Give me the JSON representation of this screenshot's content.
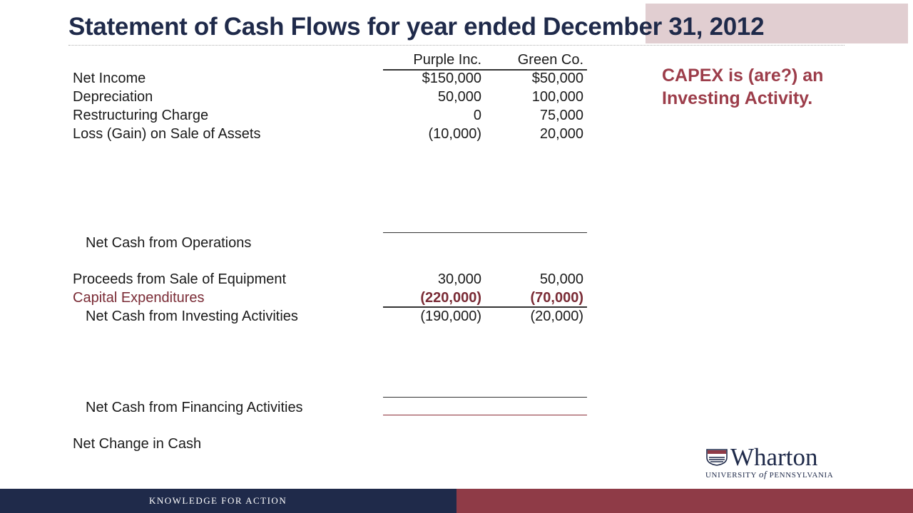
{
  "title": "Statement of Cash Flows for year ended December 31, 2012",
  "columns": [
    "Purple Inc.",
    "Green Co."
  ],
  "operating": [
    {
      "label": "Net Income",
      "purple": "$150,000",
      "green": "$50,000"
    },
    {
      "label": "Depreciation",
      "purple": "50,000",
      "green": "100,000"
    },
    {
      "label": "Restructuring Charge",
      "purple": "0",
      "green": "75,000"
    },
    {
      "label": "Loss (Gain) on Sale of Assets",
      "purple": "(10,000)",
      "green": "20,000"
    }
  ],
  "net_cash_operations_label": "Net Cash from Operations",
  "investing": [
    {
      "label": "Proceeds from Sale of Equipment",
      "purple": "30,000",
      "green": "50,000"
    },
    {
      "label": "Capital Expenditures",
      "purple": "(220,000)",
      "green": "(70,000)"
    }
  ],
  "net_cash_investing": {
    "label": "Net Cash from Investing Activities",
    "purple": "(190,000)",
    "green": "(20,000)"
  },
  "net_cash_financing_label": "Net Cash from Financing Activities",
  "net_change_label": "Net Change in Cash",
  "note": "CAPEX is (are?) an Investing Activity.",
  "logo": {
    "word": "Wharton",
    "subtitle_prefix": "University",
    "subtitle_of": "of",
    "subtitle_suffix": "Pennsylvania"
  },
  "footer": "KNOWLEDGE FOR ACTION",
  "colors": {
    "navy": "#1f2a4a",
    "maroon": "#8f3b47",
    "capex": "#7a2b35",
    "note": "#9c3d4a"
  }
}
